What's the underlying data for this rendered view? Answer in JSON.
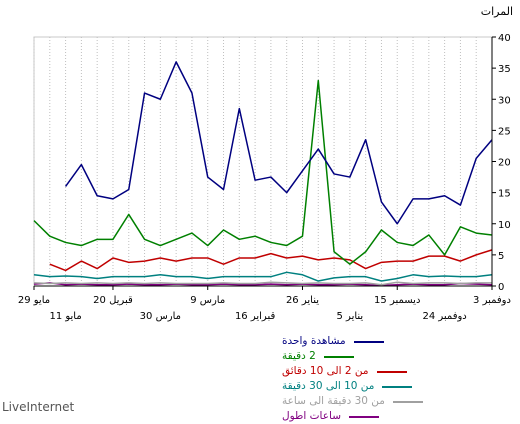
{
  "brand": "LiveInternet",
  "chart_data": {
    "type": "line",
    "ylabel": "المرات",
    "ylim": [
      0,
      40
    ],
    "yticks": [
      0,
      5,
      10,
      15,
      20,
      25,
      30,
      35,
      40
    ],
    "x_axis_direction": "right-to-left",
    "grid": true,
    "legend_position": "bottom-right",
    "x_tick_labels_row1": [
      "3 دوفمبر",
      "15 ديسمبر",
      "26 يناير",
      "9 مارس",
      "20 قبريل",
      "29 مايو"
    ],
    "x_tick_labels_row2": [
      "24 دوفمبر",
      "5 يناير",
      "16 قبراير",
      "30 مارس",
      "11 مايو"
    ],
    "series": [
      {
        "name": "مشاهدة واحدة",
        "color": "#000080",
        "values": [
          23.5,
          20.5,
          13,
          14.5,
          14,
          14,
          10,
          13.5,
          23.5,
          17.5,
          18,
          22,
          18.5,
          15,
          17.5,
          17,
          28.5,
          15.5,
          17.5,
          31,
          36,
          30,
          31,
          15.5,
          14,
          14.5,
          19.5,
          16
        ]
      },
      {
        "name": "2 دقيقة",
        "color": "#008000",
        "values": [
          8.2,
          8.5,
          9.5,
          5,
          8.2,
          6.5,
          7,
          9,
          5.5,
          3.5,
          5.5,
          33,
          8,
          6.5,
          7,
          8,
          7.5,
          9,
          6.5,
          8.5,
          7.5,
          6.5,
          7.5,
          11.5,
          7.5,
          7.5,
          6.5,
          7,
          8,
          10.5
        ]
      },
      {
        "name": "من 2 الى 10 دقائق",
        "color": "#c00000",
        "values": [
          5.8,
          5,
          4,
          4.8,
          4.8,
          4,
          4,
          3.8,
          2.8,
          4.2,
          4.5,
          4.2,
          4.8,
          4.5,
          5.2,
          4.5,
          4.5,
          3.5,
          4.5,
          4.5,
          4,
          4.5,
          4,
          3.8,
          4.5,
          2.8,
          4,
          2.5,
          3.5
        ]
      },
      {
        "name": "من 10 الى 30 دقيقة",
        "color": "#008080",
        "values": [
          1.8,
          1.5,
          1.5,
          1.6,
          1.5,
          1.8,
          1.2,
          0.8,
          1.5,
          1.5,
          1.3,
          0.8,
          1.8,
          2.2,
          1.5,
          1.5,
          1.5,
          1.5,
          1.2,
          1.5,
          1.5,
          1.8,
          1.5,
          1.5,
          1.5,
          1.2,
          1.5,
          1.6,
          1.5,
          1.8
        ]
      },
      {
        "name": "من 30 دقيقة الى ساعة",
        "color": "#a0a0a0",
        "values": [
          0.5,
          0.5,
          0.4,
          0.5,
          0.5,
          0.4,
          0.6,
          0.2,
          0.5,
          0.4,
          0.4,
          0.5,
          0.4,
          0.5,
          0.6,
          0.4,
          0.4,
          0.5,
          0.4,
          0.4,
          0.4,
          0.5,
          0.4,
          0.5,
          0.4,
          0.5,
          0.4,
          0.5,
          0.4,
          0.5
        ]
      },
      {
        "name": "ساعات اطول",
        "color": "#800080",
        "values": [
          0.2,
          0.3,
          0.4,
          0.2,
          0.2,
          0.3,
          0.2,
          0.1,
          0.2,
          0.3,
          0.2,
          0.2,
          0.3,
          0.2,
          0.3,
          0.2,
          0.2,
          0.3,
          0.2,
          0.2,
          0.3,
          0.2,
          0.2,
          0.3,
          0.2,
          0.2,
          0.3,
          0.2,
          0.5,
          0.3
        ]
      }
    ]
  }
}
